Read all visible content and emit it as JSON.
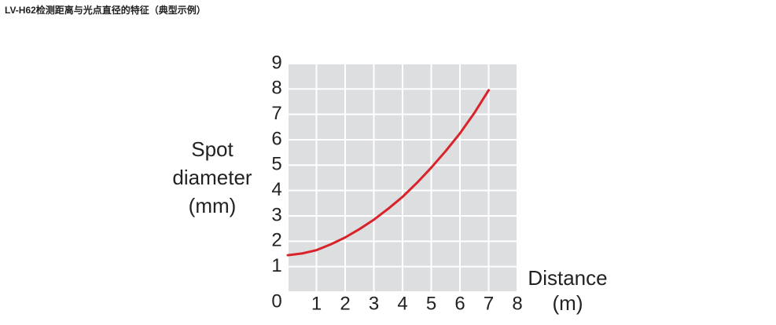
{
  "chart_data": {
    "type": "line",
    "title": "LV-H62检测距离与光点直径的特征（典型示例）",
    "ylabel": [
      "Spot",
      "diameter",
      "(mm)"
    ],
    "xlabel": [
      "Distance",
      "(m)"
    ],
    "x": [
      0,
      0.5,
      1,
      1.5,
      2,
      2.5,
      3,
      3.5,
      4,
      4.5,
      5,
      5.5,
      6,
      6.5,
      7
    ],
    "series": [
      {
        "color": "#d9232a",
        "values": [
          1.45,
          1.52,
          1.65,
          1.88,
          2.15,
          2.48,
          2.85,
          3.28,
          3.75,
          4.3,
          4.9,
          5.55,
          6.25,
          7.05,
          7.95
        ]
      }
    ],
    "xlim": [
      0,
      8
    ],
    "xticks": [
      0,
      1,
      2,
      3,
      4,
      5,
      6,
      7,
      8
    ],
    "ylim": [
      0,
      9
    ],
    "yticks": [
      0,
      1,
      2,
      3,
      4,
      5,
      6,
      7,
      8,
      9
    ],
    "grid": true
  }
}
